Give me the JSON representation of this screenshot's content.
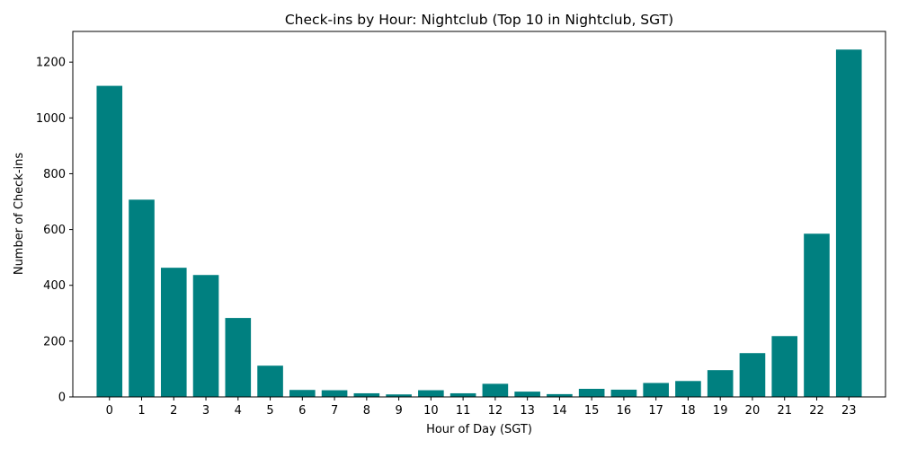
{
  "chart_data": {
    "type": "bar",
    "title": "Check-ins by Hour: Nightclub (Top 10 in Nightclub, SGT)",
    "xlabel": "Hour of Day (SGT)",
    "ylabel": "Number of Check-ins",
    "categories": [
      "0",
      "1",
      "2",
      "3",
      "4",
      "5",
      "6",
      "7",
      "8",
      "9",
      "10",
      "11",
      "12",
      "13",
      "14",
      "15",
      "16",
      "17",
      "18",
      "19",
      "20",
      "21",
      "22",
      "23"
    ],
    "values": [
      1115,
      707,
      463,
      437,
      283,
      112,
      25,
      24,
      13,
      9,
      24,
      13,
      47,
      19,
      10,
      29,
      26,
      50,
      57,
      96,
      157,
      218,
      585,
      1245
    ],
    "ylim": [
      0,
      1310
    ],
    "yticks": [
      0,
      200,
      400,
      600,
      800,
      1000,
      1200
    ],
    "bar_color": "#008080",
    "grid": false
  }
}
